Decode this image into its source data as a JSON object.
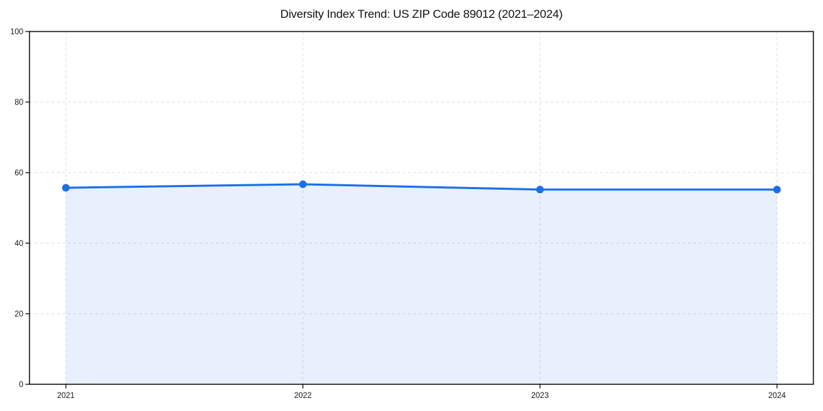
{
  "chart_data": {
    "type": "area",
    "title": "Diversity Index Trend: US ZIP Code 89012 (2021–2024)",
    "categories": [
      "2021",
      "2022",
      "2023",
      "2024"
    ],
    "values": [
      55.7,
      56.7,
      55.2,
      55.2
    ],
    "xlabel": "",
    "ylabel": "",
    "ylim": [
      0,
      100
    ],
    "yticks": [
      0,
      20,
      40,
      60,
      80,
      100
    ],
    "grid": "dashed-both-axes",
    "legend": "none",
    "marker": "circle",
    "colors": {
      "line": "#1a6fe8",
      "marker": "#1a6fe8",
      "fill": "rgba(26, 111, 232, 0.10)",
      "gridline": "#dcdcdc",
      "spine": "#000000",
      "tick_text": "#1a1a1a",
      "background": "#ffffff"
    }
  }
}
